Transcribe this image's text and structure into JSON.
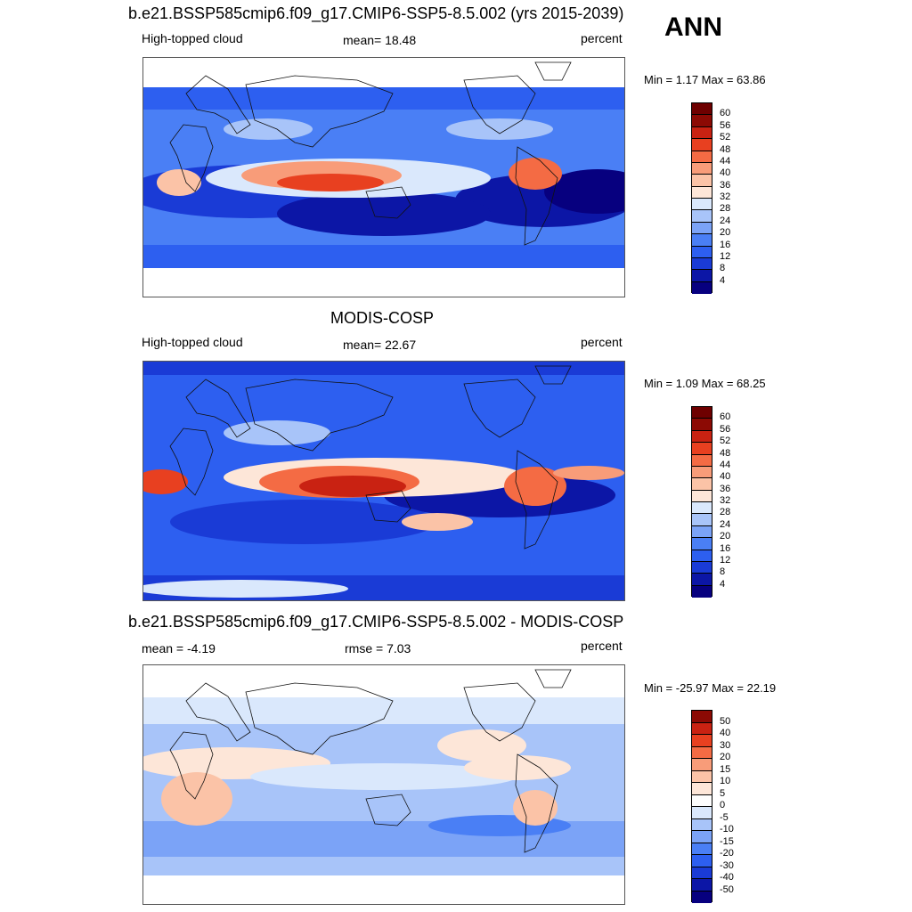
{
  "season": "ANN",
  "chart_data": [
    {
      "type": "heatmap",
      "title": "b.e21.BSSP585cmip6.f09_g17.CMIP6-SSP5-8.5.002 (yrs 2015-2039)",
      "left_label": "High-topped cloud",
      "center_label": "mean=  18.48",
      "mean": 18.48,
      "units": "percent",
      "min_max_text": "Min =   1.17 Max =  63.86",
      "min": 1.17,
      "max": 63.86,
      "lat_range": [
        -60,
        60
      ],
      "colorbar_levels": [
        "60",
        "56",
        "52",
        "48",
        "44",
        "40",
        "36",
        "32",
        "28",
        "24",
        "20",
        "16",
        "12",
        "8",
        "4"
      ]
    },
    {
      "type": "heatmap",
      "title": "MODIS-COSP",
      "left_label": "High-topped cloud",
      "center_label": "mean=  22.67",
      "mean": 22.67,
      "units": "percent",
      "min_max_text": "Min =   1.09 Max =  68.25",
      "min": 1.09,
      "max": 68.25,
      "lat_range": [
        -90,
        90
      ],
      "colorbar_levels": [
        "60",
        "56",
        "52",
        "48",
        "44",
        "40",
        "36",
        "32",
        "28",
        "24",
        "20",
        "16",
        "12",
        "8",
        "4"
      ]
    },
    {
      "type": "heatmap",
      "title": "b.e21.BSSP585cmip6.f09_g17.CMIP6-SSP5-8.5.002 - MODIS-COSP",
      "left_label": "mean =  -4.19",
      "center_label": "rmse =    7.03",
      "mean": -4.19,
      "rmse": 7.03,
      "units": "percent",
      "min_max_text": "Min = -25.97 Max =  22.19",
      "min": -25.97,
      "max": 22.19,
      "lat_range": [
        -60,
        60
      ],
      "colorbar_levels": [
        "50",
        "40",
        "30",
        "20",
        "15",
        "10",
        "5",
        "0",
        "-5",
        "-10",
        "-15",
        "-20",
        "-30",
        "-40",
        "-50"
      ]
    }
  ],
  "colors": {
    "abs_scale": [
      "#07007f",
      "#0c16a6",
      "#1a3bd6",
      "#2d5ff0",
      "#4a7ff5",
      "#7ba3f7",
      "#a8c4f9",
      "#dae8fc",
      "#fde6d8",
      "#fbc3a7",
      "#f89c79",
      "#f46b44",
      "#e84020",
      "#c92212",
      "#8c0a04",
      "#6e0000"
    ],
    "diff_scale": [
      "#07007f",
      "#0c16a6",
      "#1a3bd6",
      "#2d5ff0",
      "#4a7ff5",
      "#7ba3f7",
      "#a8c4f9",
      "#dae8fc",
      "#fdfdfd",
      "#fde6d8",
      "#fbc3a7",
      "#f89c79",
      "#f46b44",
      "#e84020",
      "#c92212",
      "#8c0a04"
    ]
  }
}
